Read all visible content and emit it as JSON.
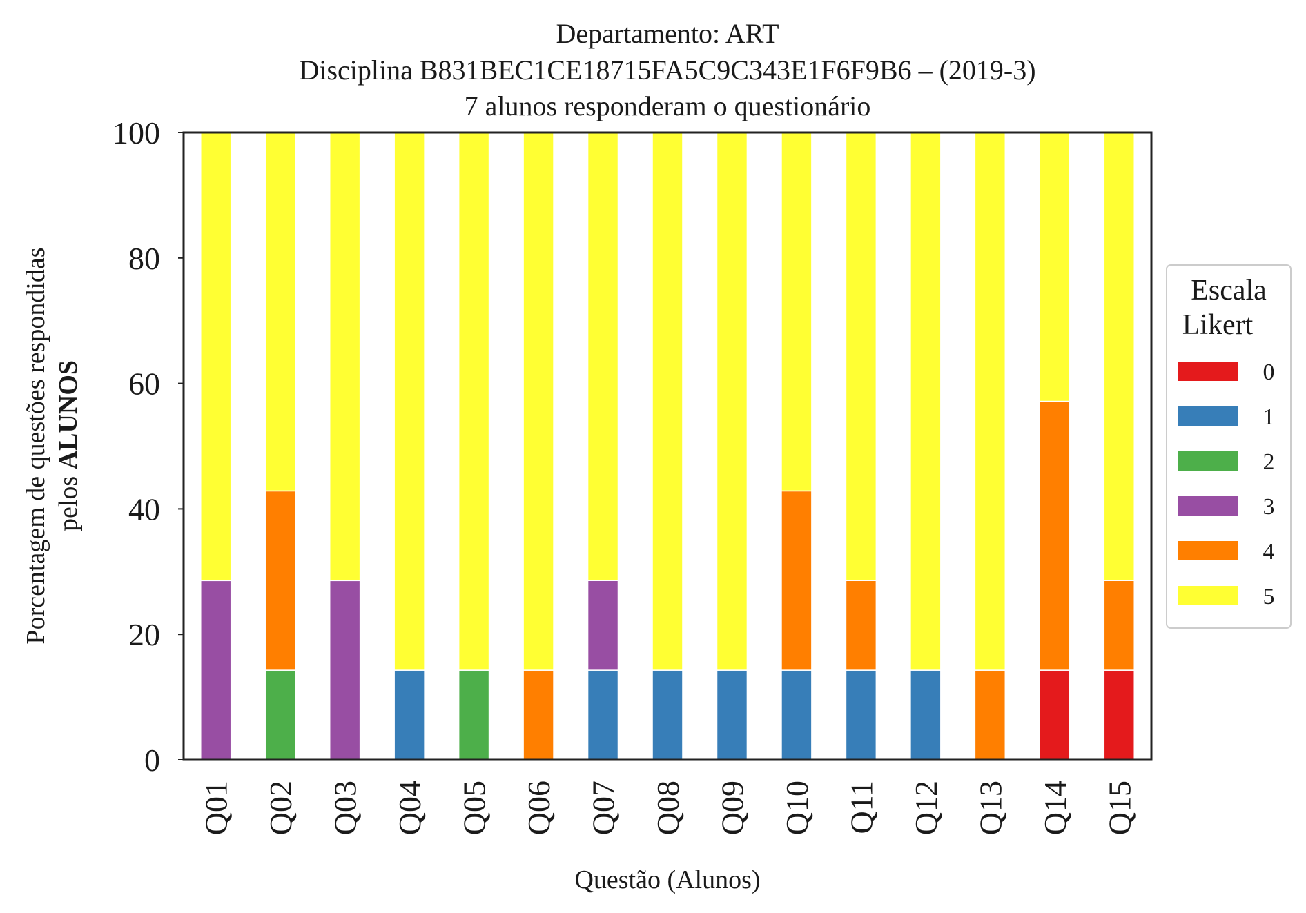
{
  "chart_data": {
    "type": "bar",
    "stacked": true,
    "title_lines": [
      "Departamento: ART",
      "Disciplina B831BEC1CE18715FA5C9C343E1F6F9B6 – (2019-3)",
      "7 alunos responderam o questionário"
    ],
    "xlabel": "Questão (Alunos)",
    "ylabel_line1": "Porcentagem de questões respondidas",
    "ylabel_line2_prefix": "pelos ",
    "ylabel_line2_bold": "ALUNOS",
    "ylim": [
      0,
      100
    ],
    "yticks": [
      "0",
      "20",
      "40",
      "60",
      "80",
      "100"
    ],
    "categories": [
      "Q01",
      "Q02",
      "Q03",
      "Q04",
      "Q05",
      "Q06",
      "Q07",
      "Q08",
      "Q09",
      "Q10",
      "Q11",
      "Q12",
      "Q13",
      "Q14",
      "Q15"
    ],
    "legend": {
      "title_line1": "Escala",
      "title_line2": "Likert",
      "placement": "right"
    },
    "series": [
      {
        "name": "0",
        "color": "#e41a1c",
        "values": [
          0,
          0,
          0,
          0,
          0,
          0,
          0,
          0,
          0,
          0,
          0,
          0,
          0,
          14.29,
          14.29
        ]
      },
      {
        "name": "1",
        "color": "#377eb8",
        "values": [
          0,
          0,
          0,
          14.29,
          0,
          0,
          14.29,
          14.29,
          14.29,
          14.29,
          14.29,
          14.29,
          0,
          0,
          0
        ]
      },
      {
        "name": "2",
        "color": "#4daf4a",
        "values": [
          0,
          14.29,
          0,
          0,
          14.29,
          0,
          0,
          0,
          0,
          0,
          0,
          0,
          0,
          0,
          0
        ]
      },
      {
        "name": "3",
        "color": "#984ea3",
        "values": [
          28.57,
          0,
          28.57,
          0,
          0,
          0,
          14.29,
          0,
          0,
          0,
          0,
          0,
          0,
          0,
          0
        ]
      },
      {
        "name": "4",
        "color": "#ff7f00",
        "values": [
          0,
          28.57,
          0,
          0,
          0,
          14.29,
          0,
          0,
          0,
          28.57,
          14.29,
          0,
          14.29,
          42.86,
          14.29
        ]
      },
      {
        "name": "5",
        "color": "#ffff33",
        "values": [
          71.43,
          57.14,
          71.43,
          85.71,
          85.71,
          85.71,
          71.43,
          85.71,
          85.71,
          57.14,
          71.43,
          85.71,
          85.71,
          42.86,
          71.43
        ]
      }
    ],
    "grid": false
  }
}
